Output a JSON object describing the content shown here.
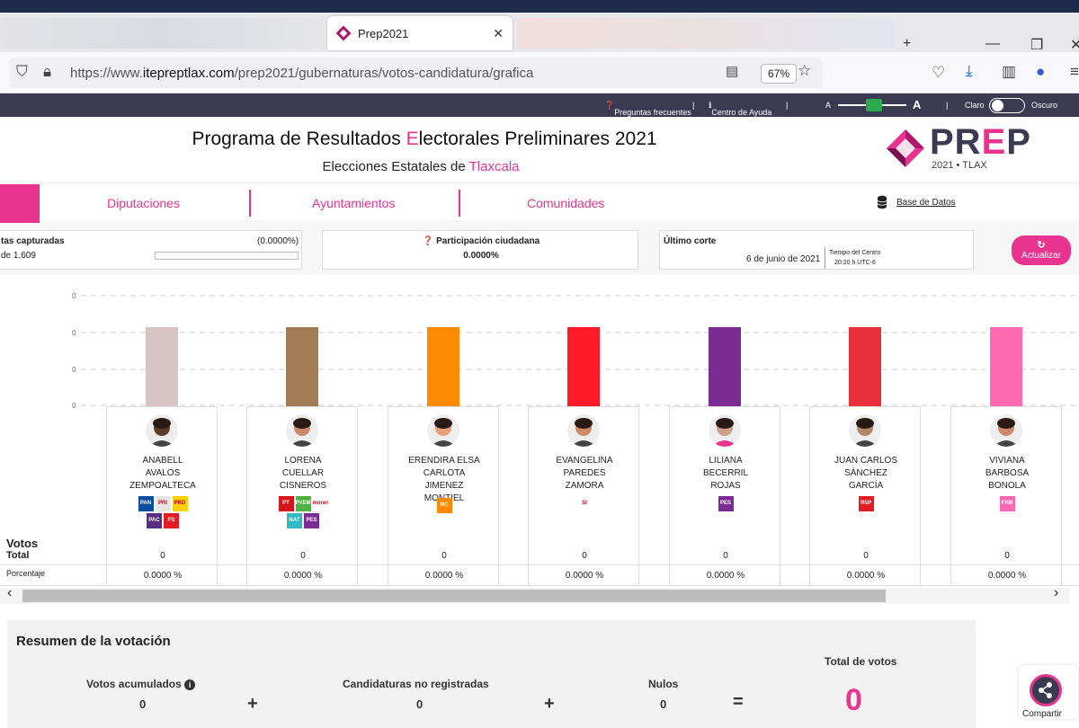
{
  "browser": {
    "tab_title": "Prep2021",
    "tab_close": "✕",
    "url_prefix": "https://www.",
    "url_domain": "itepreptlax.com",
    "url_path": "/prep2021/gubernaturas/votos-candidatura/grafica",
    "zoom": "67%"
  },
  "topbar": {
    "faq": "Preguntas frecuentes",
    "help": "Centro de Ayuda",
    "font_small": "A",
    "font_large": "A",
    "light": "Claro",
    "dark": "Oscuro"
  },
  "header": {
    "title_pre": "Programa de Resultados ",
    "title_hl": "E",
    "title_post": "lectorales Preliminares 2021",
    "subtitle_pre": "Elecciones Estatales de ",
    "subtitle_hl": "Tlaxcala",
    "logo_pre": "PR",
    "logo_e": "E",
    "logo_post": "P",
    "logo_year": "2021 • TLAX"
  },
  "nav": {
    "items": [
      "Diputaciones",
      "Ayuntamientos",
      "Comunidades"
    ],
    "database": "Base de Datos"
  },
  "stats": {
    "actas_label": "tas capturadas",
    "actas_pct": "(0.0000%)",
    "actas_count": "de 1,609",
    "participation_label": "Participación ciudadana",
    "participation_value": "0.0000%",
    "last_cut_label": "Último corte",
    "last_cut_date": "6 de junio de 2021",
    "center_time_label": "Tiempo del Centro",
    "center_time_value": "20:20 h UTC-6",
    "refresh": "Actualizar"
  },
  "chart_data": {
    "type": "bar",
    "categories": [
      "ANABELL AVALOS ZEMPOALTECA",
      "LORENA CUELLAR CISNEROS",
      "ERENDIRA ELSA CARLOTA JIMENEZ MONTIEL",
      "EVANGELINA PAREDES ZAMORA",
      "LILIANA BECERRIL ROJAS",
      "JUAN CARLOS SÁNCHEZ GARCÍA",
      "VIVIANA BARBOSA BONOLA"
    ],
    "values": [
      0,
      0,
      0,
      0,
      0,
      0,
      0
    ],
    "colors": [
      "#d8c4c4",
      "#a27c55",
      "#ff8a00",
      "#ff1a2a",
      "#7b2b91",
      "#e8303a",
      "#ff69b4"
    ],
    "ytick_labels": [
      "0",
      "0",
      "0",
      "0"
    ],
    "grid": true
  },
  "table": {
    "votes_label": "Votos",
    "total_label": "Total",
    "percent_label": "Porcentaje"
  },
  "candidates": [
    {
      "name": [
        "ANABELL",
        "AVALOS",
        "ZEMPOALTECA"
      ],
      "votes": "0",
      "pct": "0.0000 %",
      "parties": [
        "PAN",
        "PRI",
        "PRD",
        "PAC",
        "PS"
      ]
    },
    {
      "name": [
        "LORENA",
        "CUELLAR",
        "CISNEROS"
      ],
      "votes": "0",
      "pct": "0.0000 %",
      "parties": [
        "PT",
        "PVEM",
        "morena",
        "NAT",
        "PES"
      ]
    },
    {
      "name": [
        "ERENDIRA ELSA",
        "CARLOTA",
        "JIMENEZ",
        "MONTIEL"
      ],
      "votes": "0",
      "pct": "0.0000 %",
      "parties": [
        "MC"
      ]
    },
    {
      "name": [
        "EVANGELINA",
        "PAREDES",
        "ZAMORA"
      ],
      "votes": "0",
      "pct": "0.0000 %",
      "parties": [
        "SI"
      ]
    },
    {
      "name": [
        "LILIANA",
        "BECERRIL",
        "ROJAS"
      ],
      "votes": "0",
      "pct": "0.0000 %",
      "parties": [
        "PES"
      ]
    },
    {
      "name": [
        "JUAN CARLOS",
        "SÁNCHEZ",
        "GARCÍA"
      ],
      "votes": "0",
      "pct": "0.0000 %",
      "parties": [
        "RSP"
      ]
    },
    {
      "name": [
        "VIVIANA",
        "BARBOSA",
        "BONOLA"
      ],
      "votes": "0",
      "pct": "0.0000 %",
      "parties": [
        "FXM"
      ]
    }
  ],
  "summary": {
    "title": "Resumen de la votación",
    "accumulated": "Votos acumulados",
    "accumulated_value": "0",
    "unregistered": "Candidaturas no registradas",
    "unregistered_value": "0",
    "null_votes": "Nulos",
    "null_value": "0",
    "total_label": "Total de votos",
    "total_value": "0",
    "plus": "+",
    "equals": "="
  },
  "share": "Compartir",
  "scroll_left": "‹",
  "scroll_right": "›"
}
